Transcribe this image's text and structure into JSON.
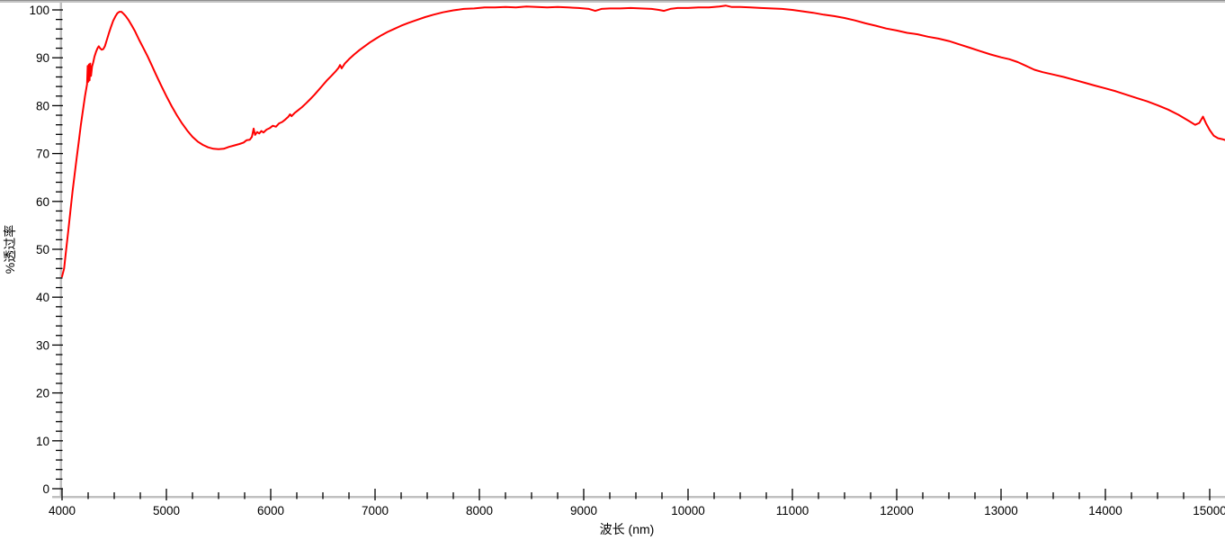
{
  "window": {
    "background": "#ffffff",
    "top_border_color": "#c3c3c3",
    "top_border_edge_color": "#8f8f8f"
  },
  "colors": {
    "curve": "#ff0000",
    "axis_bar": "#c0c0c0",
    "tick": "#000000",
    "label_text": "#000000"
  },
  "chart_data": {
    "type": "line",
    "title": "",
    "xlabel": "波长 (nm)",
    "ylabel": "%透过率",
    "x_range": [
      4000,
      15150
    ],
    "y_range": [
      0,
      100
    ],
    "x_major_ticks": [
      4000,
      5000,
      6000,
      7000,
      8000,
      9000,
      10000,
      11000,
      12000,
      13000,
      14000,
      15000
    ],
    "x_minor_step": 250,
    "y_major_ticks": [
      0,
      10,
      20,
      30,
      40,
      50,
      60,
      70,
      80,
      90,
      100
    ],
    "y_minor_step": 2,
    "grid": false,
    "legend": null,
    "series": [
      {
        "name": "transmittance",
        "color": "#ff0000",
        "points": [
          [
            4000,
            44.3
          ],
          [
            4020,
            46.0
          ],
          [
            4040,
            50.0
          ],
          [
            4060,
            54.0
          ],
          [
            4080,
            58.0
          ],
          [
            4100,
            62.0
          ],
          [
            4120,
            65.5
          ],
          [
            4140,
            69.0
          ],
          [
            4160,
            72.5
          ],
          [
            4180,
            76.0
          ],
          [
            4200,
            79.0
          ],
          [
            4220,
            82.0
          ],
          [
            4240,
            84.5
          ],
          [
            4246,
            88.3
          ],
          [
            4252,
            85.0
          ],
          [
            4258,
            88.6
          ],
          [
            4264,
            85.3
          ],
          [
            4270,
            88.8
          ],
          [
            4278,
            86.2
          ],
          [
            4288,
            88.2
          ],
          [
            4298,
            89.0
          ],
          [
            4310,
            90.2
          ],
          [
            4325,
            91.2
          ],
          [
            4340,
            92.0
          ],
          [
            4352,
            92.4
          ],
          [
            4365,
            92.0
          ],
          [
            4380,
            91.7
          ],
          [
            4395,
            91.8
          ],
          [
            4410,
            92.4
          ],
          [
            4430,
            93.8
          ],
          [
            4450,
            95.2
          ],
          [
            4470,
            96.5
          ],
          [
            4490,
            97.7
          ],
          [
            4510,
            98.6
          ],
          [
            4530,
            99.3
          ],
          [
            4550,
            99.6
          ],
          [
            4570,
            99.6
          ],
          [
            4590,
            99.2
          ],
          [
            4610,
            98.7
          ],
          [
            4640,
            97.8
          ],
          [
            4670,
            96.7
          ],
          [
            4700,
            95.5
          ],
          [
            4740,
            93.7
          ],
          [
            4780,
            92.0
          ],
          [
            4820,
            90.3
          ],
          [
            4860,
            88.4
          ],
          [
            4900,
            86.5
          ],
          [
            4950,
            84.2
          ],
          [
            5000,
            82.0
          ],
          [
            5050,
            79.9
          ],
          [
            5100,
            78.0
          ],
          [
            5150,
            76.3
          ],
          [
            5200,
            74.8
          ],
          [
            5250,
            73.5
          ],
          [
            5300,
            72.5
          ],
          [
            5350,
            71.8
          ],
          [
            5400,
            71.3
          ],
          [
            5450,
            71.0
          ],
          [
            5500,
            70.9
          ],
          [
            5550,
            71.0
          ],
          [
            5600,
            71.4
          ],
          [
            5650,
            71.7
          ],
          [
            5700,
            72.0
          ],
          [
            5740,
            72.3
          ],
          [
            5770,
            72.8
          ],
          [
            5800,
            72.9
          ],
          [
            5820,
            73.5
          ],
          [
            5836,
            75.2
          ],
          [
            5850,
            73.9
          ],
          [
            5870,
            74.5
          ],
          [
            5890,
            74.2
          ],
          [
            5910,
            74.7
          ],
          [
            5930,
            74.4
          ],
          [
            5960,
            75.0
          ],
          [
            5990,
            75.3
          ],
          [
            6020,
            75.8
          ],
          [
            6050,
            75.6
          ],
          [
            6080,
            76.3
          ],
          [
            6110,
            76.6
          ],
          [
            6140,
            77.1
          ],
          [
            6170,
            77.7
          ],
          [
            6185,
            78.2
          ],
          [
            6200,
            77.8
          ],
          [
            6230,
            78.5
          ],
          [
            6260,
            79.0
          ],
          [
            6300,
            79.7
          ],
          [
            6340,
            80.5
          ],
          [
            6380,
            81.4
          ],
          [
            6420,
            82.3
          ],
          [
            6460,
            83.3
          ],
          [
            6500,
            84.3
          ],
          [
            6540,
            85.3
          ],
          [
            6580,
            86.2
          ],
          [
            6620,
            87.1
          ],
          [
            6650,
            87.9
          ],
          [
            6665,
            88.5
          ],
          [
            6680,
            87.8
          ],
          [
            6710,
            88.8
          ],
          [
            6750,
            89.7
          ],
          [
            6800,
            90.7
          ],
          [
            6850,
            91.6
          ],
          [
            6900,
            92.4
          ],
          [
            6950,
            93.2
          ],
          [
            7000,
            93.9
          ],
          [
            7060,
            94.7
          ],
          [
            7120,
            95.4
          ],
          [
            7180,
            96.0
          ],
          [
            7250,
            96.7
          ],
          [
            7320,
            97.3
          ],
          [
            7400,
            97.9
          ],
          [
            7480,
            98.5
          ],
          [
            7560,
            99.0
          ],
          [
            7650,
            99.5
          ],
          [
            7750,
            99.9
          ],
          [
            7850,
            100.2
          ],
          [
            7950,
            100.3
          ],
          [
            8050,
            100.5
          ],
          [
            8150,
            100.5
          ],
          [
            8250,
            100.6
          ],
          [
            8350,
            100.5
          ],
          [
            8450,
            100.7
          ],
          [
            8550,
            100.6
          ],
          [
            8650,
            100.5
          ],
          [
            8750,
            100.6
          ],
          [
            8850,
            100.5
          ],
          [
            8950,
            100.4
          ],
          [
            9050,
            100.2
          ],
          [
            9110,
            99.8
          ],
          [
            9170,
            100.2
          ],
          [
            9250,
            100.3
          ],
          [
            9350,
            100.3
          ],
          [
            9450,
            100.4
          ],
          [
            9550,
            100.3
          ],
          [
            9650,
            100.2
          ],
          [
            9720,
            100.0
          ],
          [
            9770,
            99.8
          ],
          [
            9830,
            100.2
          ],
          [
            9900,
            100.4
          ],
          [
            10000,
            100.4
          ],
          [
            10100,
            100.5
          ],
          [
            10200,
            100.5
          ],
          [
            10300,
            100.7
          ],
          [
            10360,
            100.9
          ],
          [
            10420,
            100.6
          ],
          [
            10500,
            100.6
          ],
          [
            10600,
            100.5
          ],
          [
            10700,
            100.4
          ],
          [
            10800,
            100.3
          ],
          [
            10900,
            100.2
          ],
          [
            11000,
            100.0
          ],
          [
            11100,
            99.7
          ],
          [
            11200,
            99.4
          ],
          [
            11300,
            99.0
          ],
          [
            11400,
            98.7
          ],
          [
            11500,
            98.3
          ],
          [
            11600,
            97.8
          ],
          [
            11700,
            97.2
          ],
          [
            11800,
            96.7
          ],
          [
            11900,
            96.1
          ],
          [
            12000,
            95.7
          ],
          [
            12100,
            95.2
          ],
          [
            12200,
            94.9
          ],
          [
            12300,
            94.4
          ],
          [
            12400,
            94.0
          ],
          [
            12500,
            93.5
          ],
          [
            12600,
            92.8
          ],
          [
            12700,
            92.1
          ],
          [
            12800,
            91.4
          ],
          [
            12900,
            90.7
          ],
          [
            13000,
            90.1
          ],
          [
            13080,
            89.7
          ],
          [
            13160,
            89.1
          ],
          [
            13240,
            88.3
          ],
          [
            13320,
            87.5
          ],
          [
            13400,
            87.0
          ],
          [
            13500,
            86.5
          ],
          [
            13600,
            86.0
          ],
          [
            13700,
            85.4
          ],
          [
            13800,
            84.8
          ],
          [
            13900,
            84.2
          ],
          [
            14000,
            83.6
          ],
          [
            14100,
            83.0
          ],
          [
            14200,
            82.3
          ],
          [
            14300,
            81.6
          ],
          [
            14400,
            80.9
          ],
          [
            14500,
            80.1
          ],
          [
            14600,
            79.2
          ],
          [
            14700,
            78.1
          ],
          [
            14800,
            76.8
          ],
          [
            14860,
            76.0
          ],
          [
            14900,
            76.4
          ],
          [
            14935,
            77.7
          ],
          [
            14965,
            76.3
          ],
          [
            15000,
            74.9
          ],
          [
            15040,
            73.7
          ],
          [
            15080,
            73.2
          ],
          [
            15120,
            73.0
          ],
          [
            15150,
            72.8
          ]
        ]
      }
    ]
  }
}
